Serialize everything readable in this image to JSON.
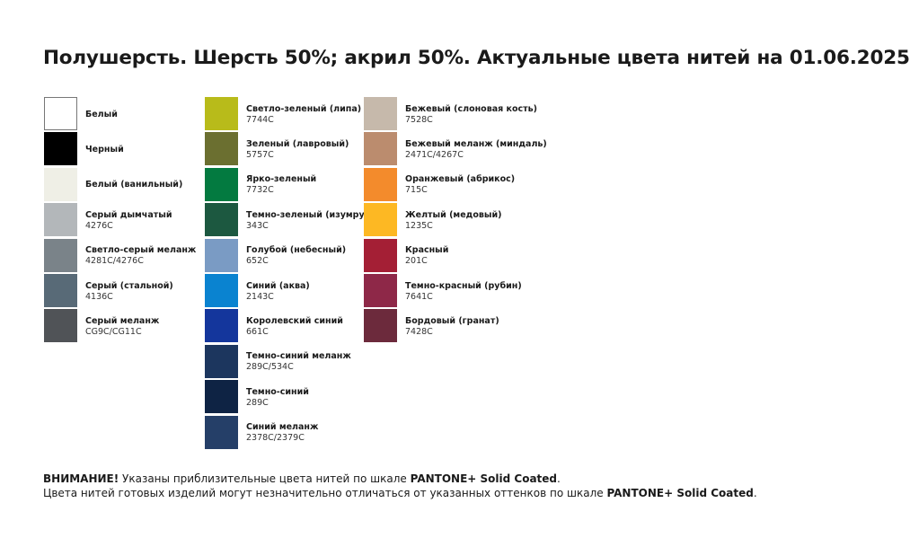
{
  "title": "Полушерсть. Шерсть 50%; акрил 50%. Актуальные цвета нитей на 01.06.2025",
  "columns": [
    [
      {
        "name": "Белый",
        "code": "",
        "color": "#ffffff"
      },
      {
        "name": "Черный",
        "code": "",
        "color": "#000000"
      },
      {
        "name": "Белый (ванильный)",
        "code": "",
        "color": "#efefe6"
      },
      {
        "name": "Серый дымчатый",
        "code": "4276C",
        "color": "#b3b7ba"
      },
      {
        "name": "Светло-серый меланж",
        "code": "4281C/4276C",
        "color": "#7a8389"
      },
      {
        "name": "Серый (стальной)",
        "code": "4136C",
        "color": "#586a77"
      },
      {
        "name": "Серый меланж",
        "code": "CG9C/CG11C",
        "color": "#505357"
      }
    ],
    [
      {
        "name": "Светло-зеленый (липа)",
        "code": "7744C",
        "color": "#b8bb1a"
      },
      {
        "name": "Зеленый (лавровый)",
        "code": "5757C",
        "color": "#6b6f30"
      },
      {
        "name": "Ярко-зеленый",
        "code": "7732C",
        "color": "#037a40"
      },
      {
        "name": "Темно-зеленый (изумруд)",
        "code": "343C",
        "color": "#1c5840"
      },
      {
        "name": "Голубой (небесный)",
        "code": "652C",
        "color": "#7a9bc4"
      },
      {
        "name": "Синий (аква)",
        "code": "2143C",
        "color": "#0a83d0"
      },
      {
        "name": "Королевский синий",
        "code": "661C",
        "color": "#14369c"
      },
      {
        "name": "Темно-синий меланж",
        "code": "289C/534C",
        "color": "#1c365e"
      },
      {
        "name": "Темно-синий",
        "code": "289C",
        "color": "#0e2344"
      },
      {
        "name": "Синий меланж",
        "code": "2378C/2379C",
        "color": "#253f68"
      }
    ],
    [
      {
        "name": "Бежевый (слоновая кость)",
        "code": "7528C",
        "color": "#c6b9ab"
      },
      {
        "name": "Бежевый меланж (миндаль)",
        "code": "2471C/4267C",
        "color": "#bb8c6e"
      },
      {
        "name": "Оранжевый (абрикос)",
        "code": "715C",
        "color": "#f38b2c"
      },
      {
        "name": "Желтый (медовый)",
        "code": "1235C",
        "color": "#fdb823"
      },
      {
        "name": "Красный",
        "code": "201C",
        "color": "#a41f35"
      },
      {
        "name": "Темно-красный (рубин)",
        "code": "7641C",
        "color": "#8e2848"
      },
      {
        "name": "Бордовый (гранат)",
        "code": "7428C",
        "color": "#6c2a3c"
      }
    ]
  ],
  "footer": {
    "line1_bold": "ВНИМАНИЕ!",
    "line1_text": " Указаны приблизительные цвета нитей по шкале ",
    "line1_brand": "PANTONE+ Solid Coated",
    "line1_end": ".",
    "line2_text": "Цвета нитей готовых изделий могут незначительно отличаться от указанных оттенков по шкале ",
    "line2_brand": "PANTONE+ Solid Coated",
    "line2_end": "."
  }
}
